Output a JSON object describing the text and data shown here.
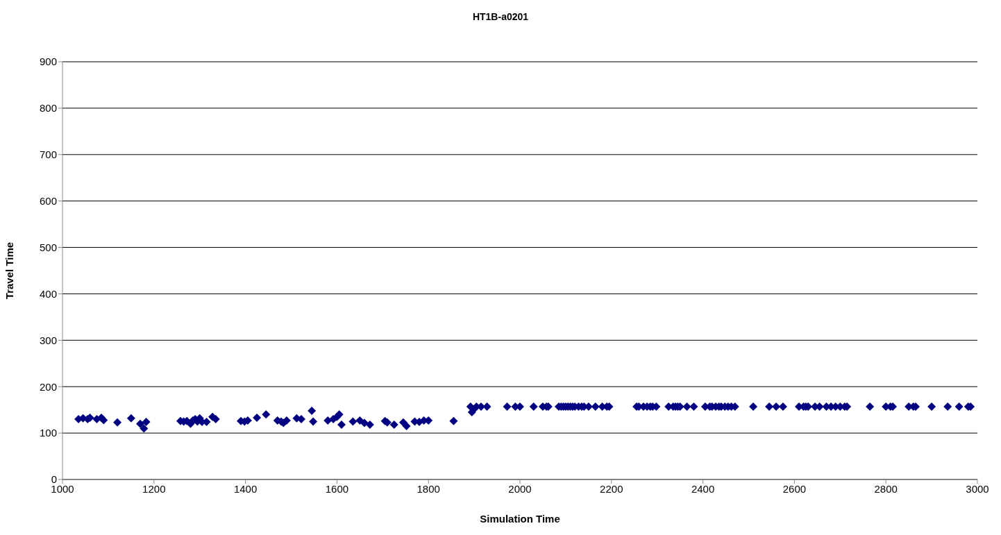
{
  "chart_data": {
    "type": "scatter",
    "title": "HT1B-a0201",
    "xlabel": "Simulation Time",
    "ylabel": "Travel Time",
    "xlim": [
      1000,
      3000
    ],
    "xticks": [
      1000,
      1200,
      1400,
      1600,
      1800,
      2000,
      2200,
      2400,
      2600,
      2800,
      3000
    ],
    "ylim": [
      0,
      900
    ],
    "yticks": [
      0,
      100,
      200,
      300,
      400,
      500,
      600,
      700,
      800,
      900
    ],
    "grid": "y",
    "marker": "diamond",
    "legend": false,
    "series": [
      {
        "color": "#000080",
        "x": [
          1035,
          1045,
          1055,
          1060,
          1075,
          1085,
          1090,
          1120,
          1150,
          1170,
          1178,
          1183,
          1258,
          1265,
          1272,
          1280,
          1285,
          1290,
          1295,
          1300,
          1305,
          1315,
          1328,
          1335,
          1390,
          1398,
          1405,
          1425,
          1445,
          1470,
          1478,
          1483,
          1490,
          1512,
          1522,
          1545,
          1548,
          1580,
          1592,
          1600,
          1605,
          1610,
          1635,
          1650,
          1660,
          1672,
          1705,
          1710,
          1725,
          1745,
          1752,
          1770,
          1780,
          1790,
          1800,
          1855,
          1892,
          1895,
          1900,
          1905,
          1915,
          1928,
          1972,
          1990,
          2000,
          2030,
          2050,
          2058,
          2062,
          2085,
          2090,
          2095,
          2100,
          2105,
          2110,
          2115,
          2120,
          2128,
          2135,
          2140,
          2150,
          2165,
          2180,
          2190,
          2195,
          2255,
          2260,
          2270,
          2278,
          2285,
          2290,
          2298,
          2325,
          2335,
          2340,
          2345,
          2350,
          2365,
          2380,
          2405,
          2415,
          2420,
          2428,
          2435,
          2440,
          2448,
          2455,
          2462,
          2470,
          2510,
          2545,
          2560,
          2575,
          2610,
          2620,
          2625,
          2630,
          2645,
          2655,
          2670,
          2680,
          2690,
          2700,
          2710,
          2715,
          2765,
          2800,
          2810,
          2815,
          2850,
          2860,
          2865,
          2900,
          2935,
          2960,
          2980,
          2985
        ],
        "values": [
          130,
          132,
          130,
          133,
          130,
          133,
          128,
          123,
          132,
          120,
          110,
          124,
          126,
          125,
          126,
          120,
          127,
          130,
          125,
          132,
          124,
          124,
          135,
          130,
          126,
          125,
          127,
          133,
          140,
          127,
          125,
          122,
          127,
          132,
          130,
          148,
          125,
          127,
          130,
          135,
          140,
          118,
          125,
          127,
          122,
          118,
          126,
          123,
          118,
          123,
          115,
          125,
          124,
          127,
          127,
          126,
          157,
          145,
          152,
          157,
          157,
          157,
          157,
          157,
          157,
          157,
          157,
          157,
          157,
          157,
          157,
          157,
          157,
          157,
          157,
          157,
          157,
          157,
          157,
          157,
          157,
          157,
          157,
          157,
          157,
          157,
          157,
          157,
          157,
          157,
          157,
          157,
          157,
          157,
          157,
          157,
          157,
          157,
          157,
          157,
          157,
          157,
          157,
          157,
          157,
          157,
          157,
          157,
          157,
          157,
          157,
          157,
          157,
          157,
          157,
          157,
          157,
          157,
          157,
          157,
          157,
          157,
          157,
          157,
          157,
          157,
          157,
          157,
          157,
          157,
          157,
          157,
          157,
          157,
          157,
          157,
          157
        ]
      }
    ]
  }
}
